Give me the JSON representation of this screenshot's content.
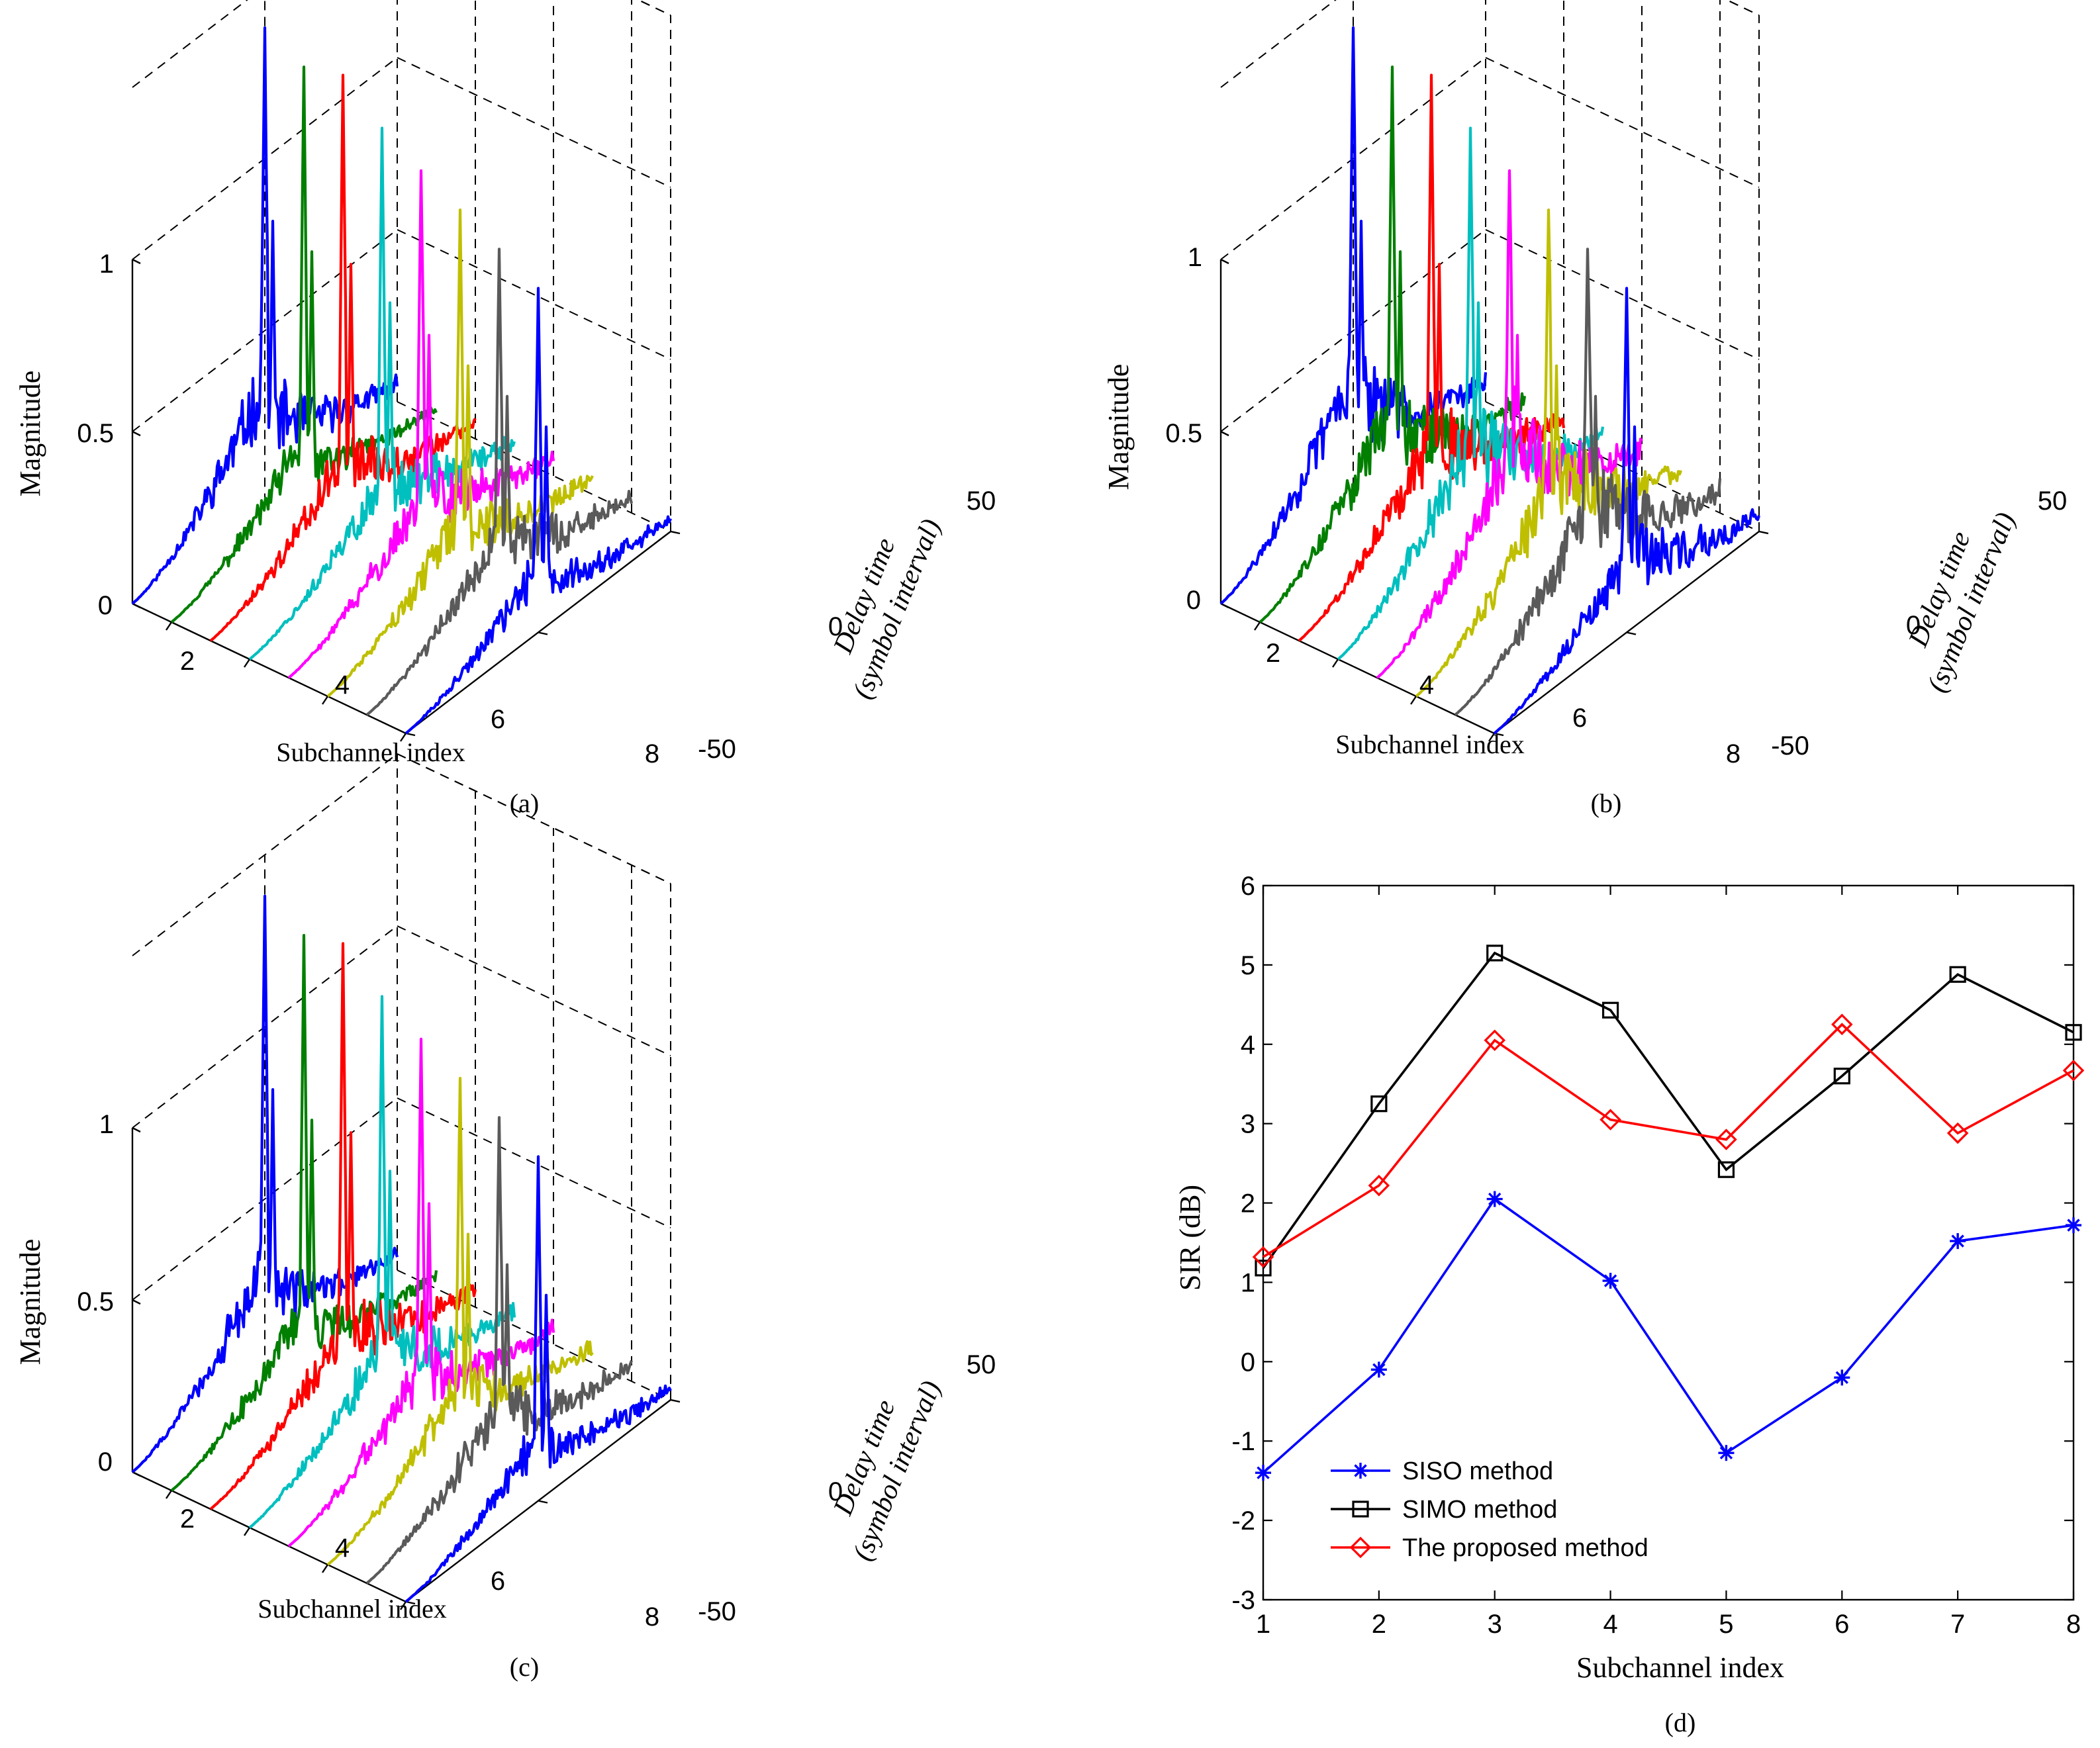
{
  "panels_3d": [
    {
      "id": "a",
      "caption": "(a)",
      "zlabel": "Magnitude",
      "xlabel": "Subchannel index",
      "ylabel_line1": "Delay time",
      "ylabel_line2": "(symbol interval)",
      "z_ticks": [
        "0",
        "0.5",
        "1"
      ],
      "x_ticks": [
        "2",
        "4",
        "6",
        "8"
      ],
      "y_ticks": [
        "-50",
        "0",
        "50"
      ],
      "peaks": [
        1.38,
        1.32,
        1.35,
        1.25,
        1.18,
        1.12,
        1.06,
        1.0
      ],
      "noise": [
        0.38,
        0.22,
        0.32,
        0.34,
        0.38,
        0.3,
        0.32,
        0.2
      ],
      "prepeak": [
        0.45,
        0.3,
        0.3,
        0.28,
        0.3,
        0.3,
        0.3,
        0.25
      ],
      "seed": 11
    },
    {
      "id": "b",
      "caption": "(b)",
      "zlabel": "Magnitude",
      "xlabel": "Subchannel index",
      "ylabel_line1": "Delay time",
      "ylabel_line2": "(symbol interval)",
      "z_ticks": [
        "0",
        "0.5",
        "1"
      ],
      "x_ticks": [
        "2",
        "4",
        "6",
        "8"
      ],
      "y_ticks": [
        "-50",
        "0",
        "50"
      ],
      "peaks": [
        1.38,
        1.32,
        1.35,
        1.25,
        1.18,
        1.12,
        1.06,
        1.0
      ],
      "noise": [
        0.45,
        0.4,
        0.45,
        0.5,
        0.6,
        0.55,
        0.5,
        0.35
      ],
      "prepeak": [
        0.5,
        0.45,
        0.4,
        0.45,
        0.45,
        0.4,
        0.4,
        0.3
      ],
      "seed": 29
    },
    {
      "id": "c",
      "caption": "(c)",
      "zlabel": "Magnitude",
      "xlabel": "Subchannel index",
      "ylabel_line1": "Delay time",
      "ylabel_line2": "(symbol interval)",
      "z_ticks": [
        "0",
        "0.5",
        "1"
      ],
      "x_ticks": [
        "2",
        "4",
        "6",
        "8"
      ],
      "y_ticks": [
        "-50",
        "0",
        "50"
      ],
      "peaks": [
        1.38,
        1.32,
        1.35,
        1.25,
        1.18,
        1.12,
        1.06,
        1.0
      ],
      "noise": [
        0.34,
        0.26,
        0.36,
        0.32,
        0.3,
        0.3,
        0.3,
        0.2
      ],
      "prepeak": [
        0.4,
        0.3,
        0.3,
        0.3,
        0.3,
        0.3,
        0.3,
        0.25
      ],
      "seed": 47
    }
  ],
  "series_colors": [
    "#0000ff",
    "#007f00",
    "#ff0000",
    "#00bfbf",
    "#ff00ff",
    "#bfbf00",
    "#5a5a5a",
    "#0000ff"
  ],
  "chart_data": {
    "type": "line",
    "caption": "(d)",
    "title": "",
    "xlabel": "Subchannel index",
    "ylabel": "SIR (dB)",
    "xlim": [
      1,
      8
    ],
    "ylim": [
      -3,
      6
    ],
    "x": [
      1,
      2,
      3,
      4,
      5,
      6,
      7,
      8
    ],
    "x_ticks": [
      "1",
      "2",
      "3",
      "4",
      "5",
      "6",
      "7",
      "8"
    ],
    "y_ticks": [
      "-3",
      "-2",
      "-1",
      "0",
      "1",
      "2",
      "3",
      "4",
      "5",
      "6"
    ],
    "legend_position": "bottom-left",
    "series": [
      {
        "name": "SISO method",
        "color": "#0000ff",
        "marker": "asterisk",
        "values": [
          -1.4,
          -0.1,
          2.05,
          1.02,
          -1.15,
          -0.2,
          1.52,
          1.72
        ]
      },
      {
        "name": "SIMO method",
        "color": "#000000",
        "marker": "square",
        "values": [
          1.18,
          3.25,
          5.15,
          4.43,
          2.42,
          3.6,
          4.88,
          4.15
        ]
      },
      {
        "name": "The proposed method",
        "color": "#ff0000",
        "marker": "diamond",
        "values": [
          1.32,
          2.22,
          4.05,
          3.05,
          2.8,
          4.25,
          2.88,
          3.67
        ]
      }
    ]
  }
}
